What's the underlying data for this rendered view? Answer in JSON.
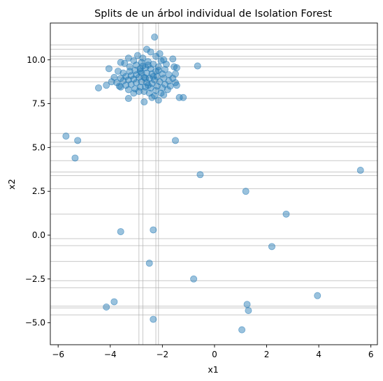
{
  "chart_data": {
    "type": "scatter",
    "title": "Splits de un árbol individual de Isolation Forest",
    "xlabel": "x1",
    "ylabel": "x2",
    "xlim": [
      -6.3,
      6.25
    ],
    "ylim": [
      -6.25,
      12.1
    ],
    "xticks": [
      "−6",
      "−4",
      "−2",
      "0",
      "2",
      "4",
      "6"
    ],
    "xtick_values": [
      -6,
      -4,
      -2,
      0,
      2,
      4,
      6
    ],
    "yticks": [
      "−5.0",
      "−2.5",
      "0.0",
      "2.5",
      "5.0",
      "7.5",
      "10.0"
    ],
    "ytick_values": [
      -5,
      -2.5,
      0,
      2.5,
      5,
      7.5,
      10
    ],
    "grid": false,
    "point_color": "#1f77b4",
    "point_alpha": 0.45,
    "split_line_color": "#b0b0b0",
    "points": [
      {
        "x": -2.3,
        "y": 11.3
      },
      {
        "x": -2.6,
        "y": 10.6
      },
      {
        "x": -2.1,
        "y": 10.35
      },
      {
        "x": -2.95,
        "y": 10.25
      },
      {
        "x": -2.45,
        "y": 10.45
      },
      {
        "x": -1.95,
        "y": 10.0
      },
      {
        "x": -1.6,
        "y": 10.05
      },
      {
        "x": -3.3,
        "y": 10.1
      },
      {
        "x": -3.6,
        "y": 9.85
      },
      {
        "x": -3.1,
        "y": 9.95
      },
      {
        "x": -2.75,
        "y": 10.1
      },
      {
        "x": -2.25,
        "y": 10.2
      },
      {
        "x": -2.05,
        "y": 9.95
      },
      {
        "x": -1.85,
        "y": 9.75
      },
      {
        "x": -3.45,
        "y": 9.8
      },
      {
        "x": -3.25,
        "y": 9.6
      },
      {
        "x": -3.0,
        "y": 9.7
      },
      {
        "x": -2.8,
        "y": 9.85
      },
      {
        "x": -2.55,
        "y": 9.9
      },
      {
        "x": -2.35,
        "y": 9.75
      },
      {
        "x": -2.15,
        "y": 9.6
      },
      {
        "x": -1.9,
        "y": 9.45
      },
      {
        "x": -1.55,
        "y": 9.6
      },
      {
        "x": -1.5,
        "y": 9.2
      },
      {
        "x": -3.7,
        "y": 9.35
      },
      {
        "x": -3.5,
        "y": 9.25
      },
      {
        "x": -3.25,
        "y": 9.35
      },
      {
        "x": -3.05,
        "y": 9.4
      },
      {
        "x": -2.85,
        "y": 9.5
      },
      {
        "x": -2.65,
        "y": 9.55
      },
      {
        "x": -2.45,
        "y": 9.5
      },
      {
        "x": -2.25,
        "y": 9.35
      },
      {
        "x": -2.0,
        "y": 9.2
      },
      {
        "x": -1.75,
        "y": 9.15
      },
      {
        "x": -1.6,
        "y": 8.95
      },
      {
        "x": -3.85,
        "y": 9.0
      },
      {
        "x": -3.6,
        "y": 8.95
      },
      {
        "x": -3.4,
        "y": 9.05
      },
      {
        "x": -3.2,
        "y": 9.1
      },
      {
        "x": -3.0,
        "y": 9.15
      },
      {
        "x": -2.8,
        "y": 9.25
      },
      {
        "x": -2.6,
        "y": 9.25
      },
      {
        "x": -2.4,
        "y": 9.2
      },
      {
        "x": -2.2,
        "y": 9.05
      },
      {
        "x": -1.95,
        "y": 8.95
      },
      {
        "x": -1.75,
        "y": 8.8
      },
      {
        "x": -1.5,
        "y": 8.7
      },
      {
        "x": -3.95,
        "y": 8.75
      },
      {
        "x": -3.75,
        "y": 8.7
      },
      {
        "x": -3.5,
        "y": 8.8
      },
      {
        "x": -3.3,
        "y": 8.85
      },
      {
        "x": -3.1,
        "y": 8.9
      },
      {
        "x": -2.9,
        "y": 9.0
      },
      {
        "x": -2.7,
        "y": 9.0
      },
      {
        "x": -2.5,
        "y": 8.95
      },
      {
        "x": -2.3,
        "y": 8.85
      },
      {
        "x": -2.1,
        "y": 8.75
      },
      {
        "x": -1.9,
        "y": 8.6
      },
      {
        "x": -1.7,
        "y": 8.5
      },
      {
        "x": -3.6,
        "y": 8.45
      },
      {
        "x": -3.4,
        "y": 8.55
      },
      {
        "x": -3.2,
        "y": 8.6
      },
      {
        "x": -3.0,
        "y": 8.7
      },
      {
        "x": -2.8,
        "y": 8.75
      },
      {
        "x": -2.6,
        "y": 8.7
      },
      {
        "x": -2.4,
        "y": 8.65
      },
      {
        "x": -2.2,
        "y": 8.5
      },
      {
        "x": -2.0,
        "y": 8.4
      },
      {
        "x": -1.8,
        "y": 8.3
      },
      {
        "x": -3.3,
        "y": 8.3
      },
      {
        "x": -3.05,
        "y": 8.35
      },
      {
        "x": -2.85,
        "y": 8.45
      },
      {
        "x": -2.65,
        "y": 8.45
      },
      {
        "x": -2.45,
        "y": 8.4
      },
      {
        "x": -2.25,
        "y": 8.25
      },
      {
        "x": -2.05,
        "y": 8.1
      },
      {
        "x": -3.1,
        "y": 8.1
      },
      {
        "x": -2.9,
        "y": 8.2
      },
      {
        "x": -2.7,
        "y": 8.2
      },
      {
        "x": -2.5,
        "y": 8.1
      },
      {
        "x": -2.3,
        "y": 7.95
      },
      {
        "x": -2.75,
        "y": 9.65
      },
      {
        "x": -2.55,
        "y": 9.7
      },
      {
        "x": -2.35,
        "y": 9.05
      },
      {
        "x": -2.65,
        "y": 8.95
      },
      {
        "x": -2.55,
        "y": 8.55
      },
      {
        "x": -2.85,
        "y": 9.35
      },
      {
        "x": -2.15,
        "y": 9.4
      },
      {
        "x": -3.3,
        "y": 7.8
      },
      {
        "x": -3.65,
        "y": 8.5
      },
      {
        "x": -4.15,
        "y": 8.55
      },
      {
        "x": -4.45,
        "y": 8.4
      },
      {
        "x": -4.05,
        "y": 9.5
      },
      {
        "x": -2.7,
        "y": 7.6
      },
      {
        "x": -2.15,
        "y": 7.7
      },
      {
        "x": -1.45,
        "y": 8.55
      },
      {
        "x": -1.2,
        "y": 7.85
      },
      {
        "x": -1.35,
        "y": 7.85
      },
      {
        "x": -0.65,
        "y": 9.65
      },
      {
        "x": -1.45,
        "y": 9.55
      },
      {
        "x": -1.95,
        "y": 8.0
      },
      {
        "x": -2.4,
        "y": 7.85
      },
      {
        "x": -5.7,
        "y": 5.65
      },
      {
        "x": -5.25,
        "y": 5.4
      },
      {
        "x": -5.35,
        "y": 4.4
      },
      {
        "x": -1.5,
        "y": 5.4
      },
      {
        "x": -0.55,
        "y": 3.45
      },
      {
        "x": 1.2,
        "y": 2.5
      },
      {
        "x": 5.6,
        "y": 3.7
      },
      {
        "x": 2.75,
        "y": 1.2
      },
      {
        "x": -3.6,
        "y": 0.2
      },
      {
        "x": -2.35,
        "y": 0.3
      },
      {
        "x": 2.2,
        "y": -0.65
      },
      {
        "x": -2.5,
        "y": -1.6
      },
      {
        "x": -0.8,
        "y": -2.5
      },
      {
        "x": 3.95,
        "y": -3.45
      },
      {
        "x": -3.85,
        "y": -3.8
      },
      {
        "x": -4.15,
        "y": -4.1
      },
      {
        "x": 1.25,
        "y": -3.95
      },
      {
        "x": 1.3,
        "y": -4.3
      },
      {
        "x": -2.35,
        "y": -4.8
      },
      {
        "x": 1.05,
        "y": -5.4
      }
    ],
    "vertical_splits": [
      -2.9,
      -2.75,
      -2.25,
      -2.15
    ],
    "horizontal_splits": [
      10.85,
      10.6,
      10.2,
      10.05,
      9.6,
      9.0,
      8.75,
      7.8,
      5.8,
      5.3,
      5.05,
      4.25,
      3.6,
      3.4,
      2.65,
      1.2,
      -0.2,
      -0.6,
      -1.5,
      -2.6,
      -3.0,
      -4.05,
      -4.15,
      -4.55
    ]
  }
}
